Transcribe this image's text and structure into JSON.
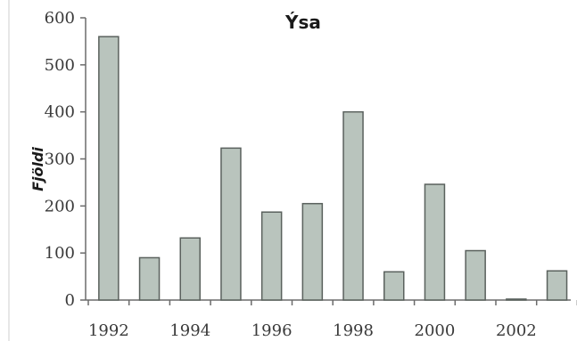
{
  "chart_data": {
    "type": "bar",
    "title": "Ýsa",
    "xlabel": "",
    "ylabel": "Fjöldi",
    "categories": [
      "1992",
      "1993",
      "1994",
      "1995",
      "1996",
      "1997",
      "1998",
      "1999",
      "2000",
      "2001",
      "2002",
      "2003"
    ],
    "x_tick_labels": [
      "1992",
      "1994",
      "1996",
      "1998",
      "2000",
      "2002"
    ],
    "y_tick_labels": [
      "0",
      "100",
      "200",
      "300",
      "400",
      "500",
      "600"
    ],
    "values": [
      560,
      90,
      132,
      323,
      187,
      205,
      400,
      60,
      246,
      105,
      2,
      62
    ],
    "ylim": [
      0,
      600
    ],
    "grid": false,
    "colors": {
      "bar_fill": "#b9c4bd",
      "bar_stroke": "#5a615d",
      "axis": "#6b6b6b"
    }
  }
}
